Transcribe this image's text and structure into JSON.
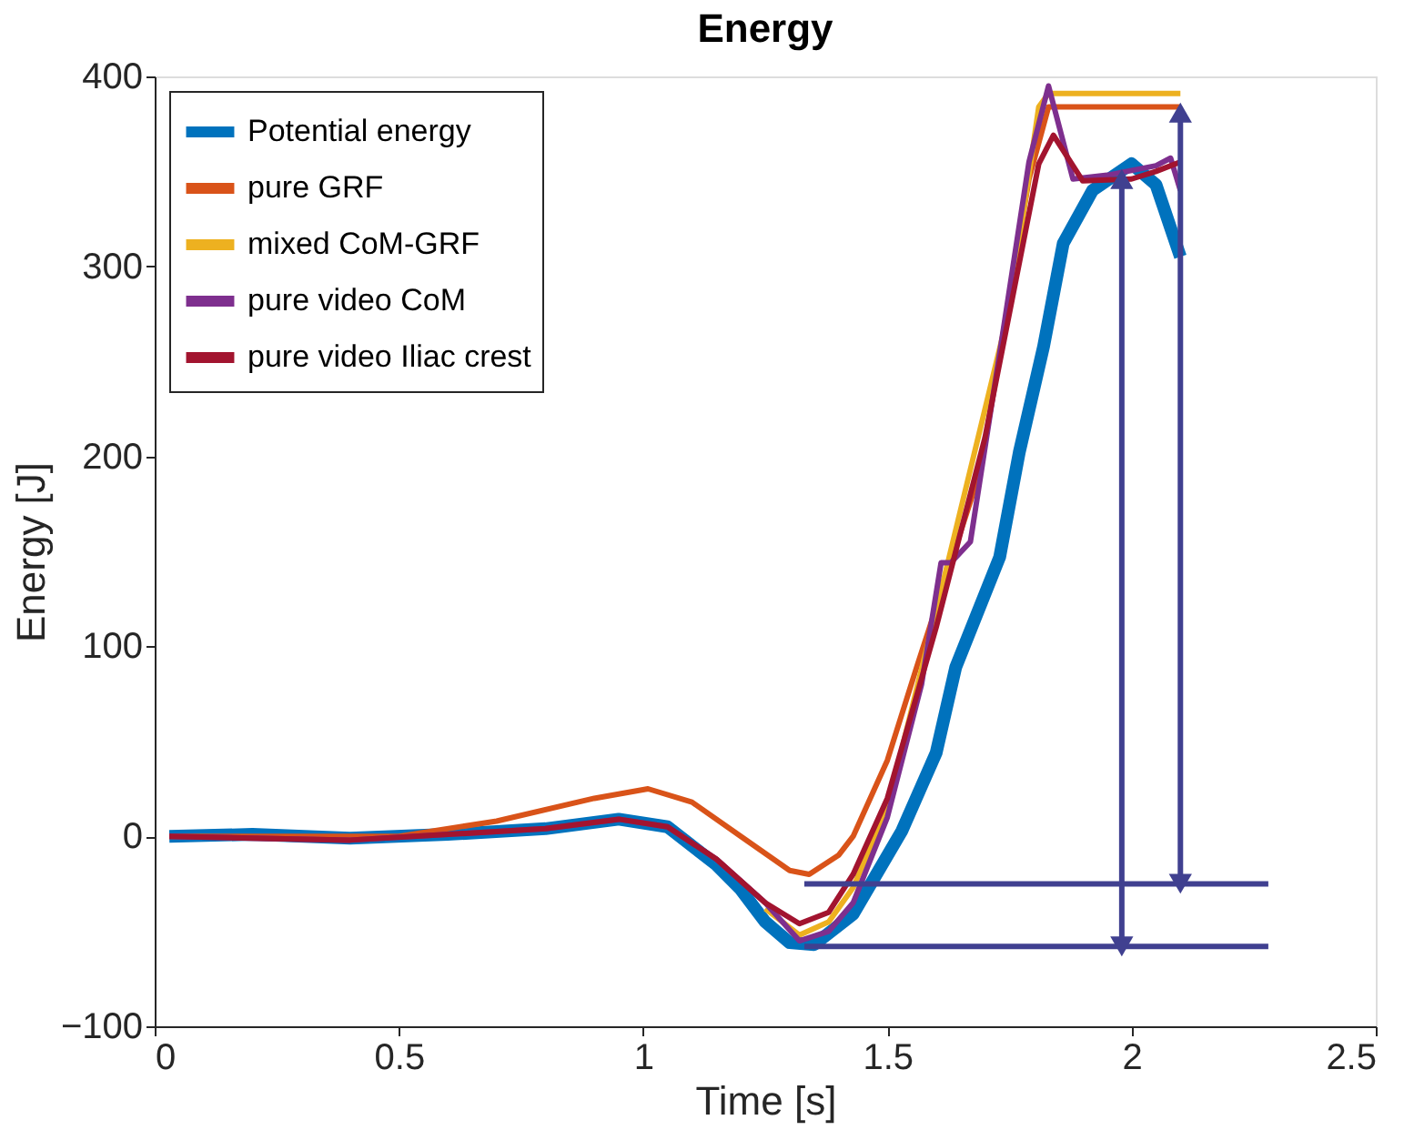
{
  "chart_data": {
    "type": "line",
    "title": "Energy",
    "xlabel": "Time [s]",
    "ylabel": "Energy [J]",
    "xlim": [
      0,
      2.5
    ],
    "xticks": [
      0,
      0.5,
      1,
      1.5,
      2,
      2.5
    ],
    "ylim": [
      -100,
      400
    ],
    "yticks": [
      -100,
      0,
      100,
      200,
      300,
      400
    ],
    "grid": false,
    "legend": "top left",
    "line_style": "solid",
    "marker": "none",
    "series": [
      {
        "name": "Potential energy",
        "color": "#0072bd",
        "x": [
          0.03,
          0.2,
          0.4,
          0.6,
          0.8,
          0.95,
          1.05,
          1.15,
          1.2,
          1.25,
          1.3,
          1.35,
          1.43,
          1.53,
          1.6,
          1.64,
          1.73,
          1.77,
          1.82,
          1.86,
          1.92,
          2.0,
          2.05,
          2.1
        ],
        "values": [
          0,
          1,
          -1,
          1,
          4,
          9,
          5,
          -15,
          -28,
          -45,
          -56,
          -57,
          -41,
          3,
          44,
          89,
          147,
          202,
          258,
          312,
          340,
          354,
          343,
          305
        ]
      },
      {
        "name": "pure GRF",
        "color": "#d95319",
        "x": [
          0.03,
          0.3,
          0.5,
          0.7,
          0.9,
          1.01,
          1.1,
          1.2,
          1.3,
          1.34,
          1.4,
          1.43,
          1.5,
          1.56,
          1.69,
          1.79,
          1.83,
          2.1
        ],
        "values": [
          0,
          0,
          0,
          8,
          20,
          25,
          18,
          0,
          -18,
          -20,
          -10,
          0,
          40,
          89,
          192,
          346,
          384,
          384
        ]
      },
      {
        "name": "mixed CoM-GRF",
        "color": "#edb120",
        "x": [
          1.25,
          1.32,
          1.38,
          1.43,
          1.5,
          1.62,
          1.75,
          1.81,
          1.83,
          2.1
        ],
        "values": [
          -38,
          -52,
          -45,
          -27,
          15,
          140,
          278,
          384,
          391,
          391
        ]
      },
      {
        "name": "pure video CoM",
        "color": "#7e2f8e",
        "x": [
          0.03,
          0.4,
          0.8,
          0.95,
          1.05,
          1.15,
          1.25,
          1.32,
          1.38,
          1.43,
          1.5,
          1.57,
          1.61,
          1.63,
          1.67,
          1.74,
          1.79,
          1.83,
          1.88,
          1.95,
          2.05,
          2.08,
          2.1
        ],
        "values": [
          0,
          -2,
          4,
          9,
          5,
          -12,
          -35,
          -55,
          -50,
          -35,
          10,
          80,
          144,
          144,
          155,
          271,
          355,
          395,
          346,
          348,
          353,
          357,
          340
        ]
      },
      {
        "name": "pure video Iliac crest",
        "color": "#a2142f",
        "x": [
          0.03,
          0.4,
          0.8,
          0.95,
          1.05,
          1.15,
          1.25,
          1.32,
          1.38,
          1.43,
          1.5,
          1.6,
          1.7,
          1.81,
          1.84,
          1.9,
          2.0,
          2.05,
          2.1
        ],
        "values": [
          0,
          -2,
          4,
          9,
          5,
          -12,
          -35,
          -46,
          -40,
          -20,
          20,
          110,
          210,
          354,
          369,
          345,
          346,
          350,
          355
        ]
      },
      {
        "color": "#404090",
        "x": [
          1.33,
          2.28
        ],
        "values": [
          -25,
          -25
        ]
      },
      {
        "color": "#404090",
        "x": [
          1.33,
          2.28
        ],
        "values": [
          -58,
          -58
        ]
      },
      {
        "color": "#404090",
        "x": [
          1.98,
          1.98
        ],
        "values": [
          -58,
          346
        ],
        "marker": "triangle"
      },
      {
        "color": "#404090",
        "x": [
          2.1,
          2.1
        ],
        "values": [
          -25,
          381
        ],
        "marker": "triangle"
      }
    ]
  }
}
